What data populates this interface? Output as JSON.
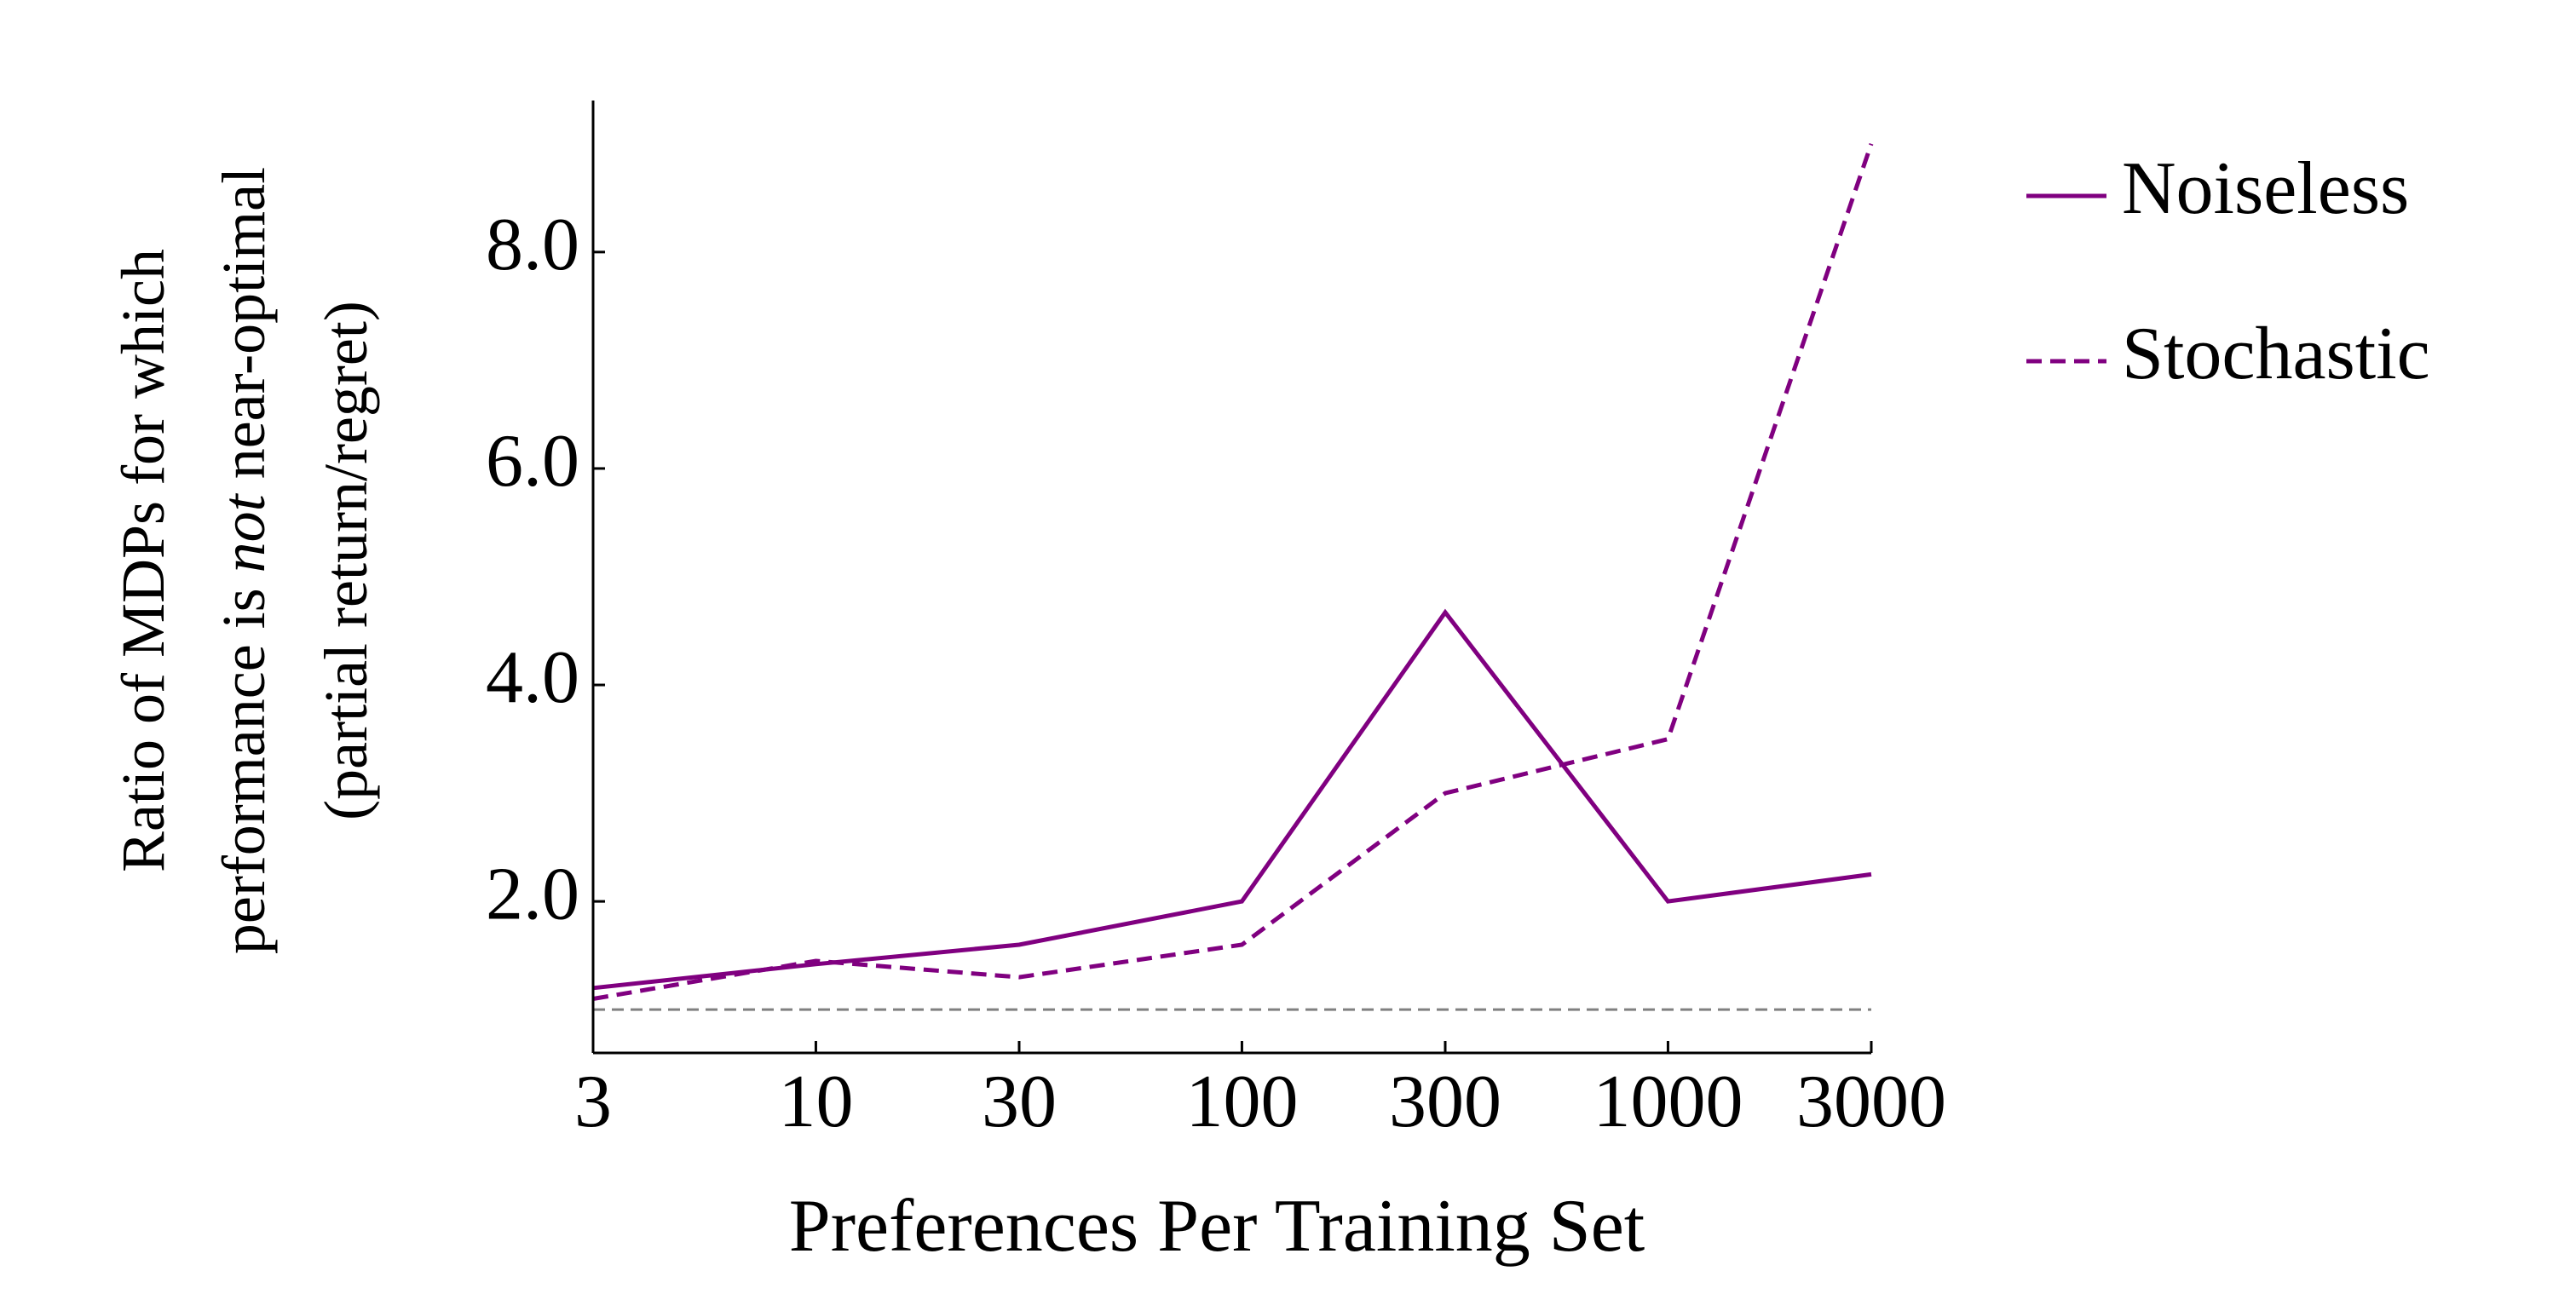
{
  "chart_data": {
    "type": "line",
    "x_scale": "log",
    "x": [
      3,
      10,
      30,
      100,
      300,
      1000,
      3000
    ],
    "x_tick_labels": [
      "3",
      "10",
      "30",
      "100",
      "300",
      "1000",
      "3000"
    ],
    "y_ticks": [
      2.0,
      4.0,
      6.0,
      8.0
    ],
    "y_tick_labels": [
      "2.0",
      "4.0",
      "6.0",
      "8.0"
    ],
    "ylim": [
      0.6,
      9.4
    ],
    "xlabel": "Preferences Per Training Set",
    "ylabel": {
      "line1": "Ratio of MDPs for which",
      "line2_before": "performance is ",
      "line2_emph": "not",
      "line2_after": " near-optimal",
      "line3": "(partial return/regret)"
    },
    "series": [
      {
        "name": "Noiseless",
        "style": "solid",
        "color": "#800080",
        "values": [
          1.2,
          1.42,
          1.6,
          2.0,
          4.67,
          2.0,
          2.25
        ]
      },
      {
        "name": "Stochastic",
        "style": "dashed",
        "color": "#800080",
        "values": [
          1.1,
          1.45,
          1.3,
          1.6,
          3.0,
          3.5,
          9.0
        ]
      }
    ],
    "reference_line": {
      "y": 1.0,
      "color": "#808080",
      "style": "dashed"
    },
    "legend_position": "top-right",
    "grid": false
  }
}
